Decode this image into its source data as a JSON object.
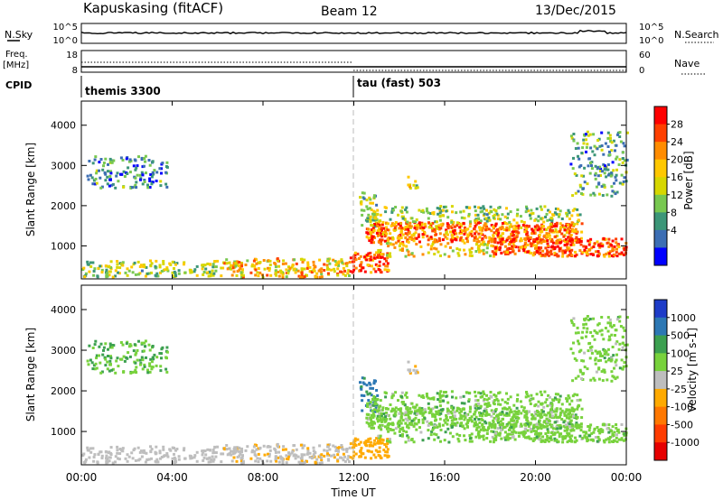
{
  "header": {
    "station": "Kapuskasing (fitACF)",
    "beam": "Beam 12",
    "date": "13/Dec/2015"
  },
  "strips": {
    "nsky_label": "N.Sky",
    "nsky_ticks": [
      "10^5",
      "10^0"
    ],
    "nsearch_label": "N.Search",
    "nsearch_ticks": [
      "10^5",
      "10^0"
    ],
    "freq_label": "Freq.",
    "freq_unit": "[MHz]",
    "freq_ticks": [
      "18",
      "8"
    ],
    "nave_label": "Nave",
    "nave_ticks": [
      "60",
      "0"
    ],
    "cpid_label": "CPID",
    "cpid_segments": [
      {
        "name": "themis 3300",
        "start_hour": 0
      },
      {
        "name": "tau (fast) 503",
        "start_hour": 12
      }
    ]
  },
  "power_panel": {
    "ylabel": "Slant Range [km]",
    "cbar_label": "Power [dB]",
    "cbar_ticks": [
      "28",
      "24",
      "20",
      "16",
      "12",
      "8",
      "4"
    ],
    "cbar_colors": [
      "#ff0000",
      "#ff4000",
      "#ff8c00",
      "#ffc800",
      "#d7d700",
      "#78c850",
      "#3c9678",
      "#3c6eb4",
      "#0000ff"
    ]
  },
  "velocity_panel": {
    "ylabel": "Slant Range [km]",
    "cbar_label": "Velocity [m s-1]",
    "cbar_ticks": [
      "1000",
      "500",
      "100",
      "25",
      "-25",
      "-100",
      "-500",
      "-1000"
    ],
    "cbar_colors": [
      "#1e3cc8",
      "#2d78b4",
      "#3ca050",
      "#78d23c",
      "#bebebe",
      "#ffaa00",
      "#ff7800",
      "#ff3c00",
      "#e60000"
    ]
  },
  "xaxis": {
    "label": "Time UT",
    "ticks": [
      "00:00",
      "04:00",
      "08:00",
      "12:00",
      "16:00",
      "20:00",
      "00:00"
    ]
  },
  "chart_data": {
    "type": "heatmap",
    "title": "Kapuskasing (fitACF) Beam 12 13/Dec/2015",
    "xlabel": "Time UT",
    "ylabel": "Slant Range [km]",
    "xlim": [
      0,
      24
    ],
    "ylim": [
      180,
      4600
    ],
    "yticks": [
      1000,
      2000,
      3000,
      4000
    ],
    "mode_change_hour": 12,
    "power_clim": [
      0,
      32
    ],
    "velocity_clim": [
      -1000,
      1000
    ],
    "scatter_regions": [
      {
        "t0": 0.2,
        "t1": 3.8,
        "r0": 2400,
        "r1": 3200,
        "power": 8,
        "velocity": 20,
        "density": 0.35
      },
      {
        "t0": 0.0,
        "t1": 6.0,
        "r0": 180,
        "r1": 600,
        "power": 14,
        "velocity": -60,
        "density": 0.45
      },
      {
        "t0": 6.0,
        "t1": 11.8,
        "r0": 180,
        "r1": 650,
        "power": 20,
        "velocity": -80,
        "density": 0.55
      },
      {
        "t0": 11.8,
        "t1": 13.5,
        "r0": 300,
        "r1": 800,
        "power": 26,
        "velocity": -150,
        "density": 0.75
      },
      {
        "t0": 12.2,
        "t1": 13.0,
        "r0": 1400,
        "r1": 2300,
        "power": 12,
        "velocity": 120,
        "density": 0.4
      },
      {
        "t0": 12.5,
        "t1": 22.0,
        "r0": 1050,
        "r1": 1550,
        "power": 24,
        "velocity": 0,
        "density": 0.85
      },
      {
        "t0": 12.5,
        "t1": 22.0,
        "r0": 1550,
        "r1": 1950,
        "power": 14,
        "velocity": 0,
        "density": 0.4
      },
      {
        "t0": 13.0,
        "t1": 18.0,
        "r0": 700,
        "r1": 1050,
        "power": 18,
        "velocity": 0,
        "density": 0.35
      },
      {
        "t0": 18.0,
        "t1": 24.0,
        "r0": 700,
        "r1": 1150,
        "power": 26,
        "velocity": 0,
        "density": 0.8
      },
      {
        "t0": 21.5,
        "t1": 24.0,
        "r0": 2200,
        "r1": 3800,
        "power": 10,
        "velocity": 0,
        "density": 0.3
      },
      {
        "t0": 14.3,
        "t1": 14.8,
        "r0": 2400,
        "r1": 2700,
        "power": 16,
        "velocity": -100,
        "density": 0.5
      }
    ]
  }
}
